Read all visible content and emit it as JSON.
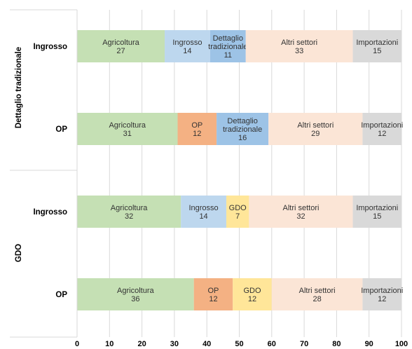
{
  "chart_data": {
    "type": "bar",
    "orientation": "horizontal",
    "stacked": true,
    "xlim": [
      0,
      100
    ],
    "x_ticks": [
      "0",
      "10",
      "20",
      "30",
      "40",
      "50",
      "60",
      "70",
      "80",
      "90",
      "100"
    ],
    "grid": true,
    "colors": {
      "Agricoltura": "#c5e0b4",
      "Ingrosso": "#bdd7ee",
      "Dettaglio tradizionale": "#9dc3e6",
      "OP": "#f4b183",
      "GDO": "#ffe699",
      "Altri settori": "#fbe5d6",
      "Importazioni": "#d9d9d9"
    },
    "groups": [
      {
        "name": "Dettaglio tradizionale",
        "rows": [
          {
            "label": "Ingrosso",
            "segments": [
              {
                "category": "Agricoltura",
                "name": [
                  "Agricoltura"
                ],
                "value": 27
              },
              {
                "category": "Ingrosso",
                "name": [
                  "Ingrosso"
                ],
                "value": 14
              },
              {
                "category": "Dettaglio tradizionale",
                "name": [
                  "Dettaglio",
                  "tradizionale"
                ],
                "value": 11
              },
              {
                "category": "Altri settori",
                "name": [
                  "Altri settori"
                ],
                "value": 33
              },
              {
                "category": "Importazioni",
                "name": [
                  "Importazioni"
                ],
                "value": 15
              }
            ]
          },
          {
            "label": "OP",
            "segments": [
              {
                "category": "Agricoltura",
                "name": [
                  "Agricoltura"
                ],
                "value": 31
              },
              {
                "category": "OP",
                "name": [
                  "OP"
                ],
                "value": 12
              },
              {
                "category": "Dettaglio tradizionale",
                "name": [
                  "Dettaglio",
                  "tradizionale"
                ],
                "value": 16
              },
              {
                "category": "Altri settori",
                "name": [
                  "Altri settori"
                ],
                "value": 29
              },
              {
                "category": "Importazioni",
                "name": [
                  "Importazioni"
                ],
                "value": 12
              }
            ]
          }
        ]
      },
      {
        "name": "GDO",
        "rows": [
          {
            "label": "Ingrosso",
            "segments": [
              {
                "category": "Agricoltura",
                "name": [
                  "Agricoltura"
                ],
                "value": 32
              },
              {
                "category": "Ingrosso",
                "name": [
                  "Ingrosso"
                ],
                "value": 14
              },
              {
                "category": "GDO",
                "name": [
                  "GDO"
                ],
                "value": 7
              },
              {
                "category": "Altri settori",
                "name": [
                  "Altri settori"
                ],
                "value": 32
              },
              {
                "category": "Importazioni",
                "name": [
                  "Importazioni"
                ],
                "value": 15
              }
            ]
          },
          {
            "label": "OP",
            "segments": [
              {
                "category": "Agricoltura",
                "name": [
                  "Agricoltura"
                ],
                "value": 36
              },
              {
                "category": "OP",
                "name": [
                  "OP"
                ],
                "value": 12
              },
              {
                "category": "GDO",
                "name": [
                  "GDO"
                ],
                "value": 12
              },
              {
                "category": "Altri settori",
                "name": [
                  "Altri settori"
                ],
                "value": 28
              },
              {
                "category": "Importazioni",
                "name": [
                  "Importazioni"
                ],
                "value": 12
              }
            ]
          }
        ]
      }
    ]
  }
}
